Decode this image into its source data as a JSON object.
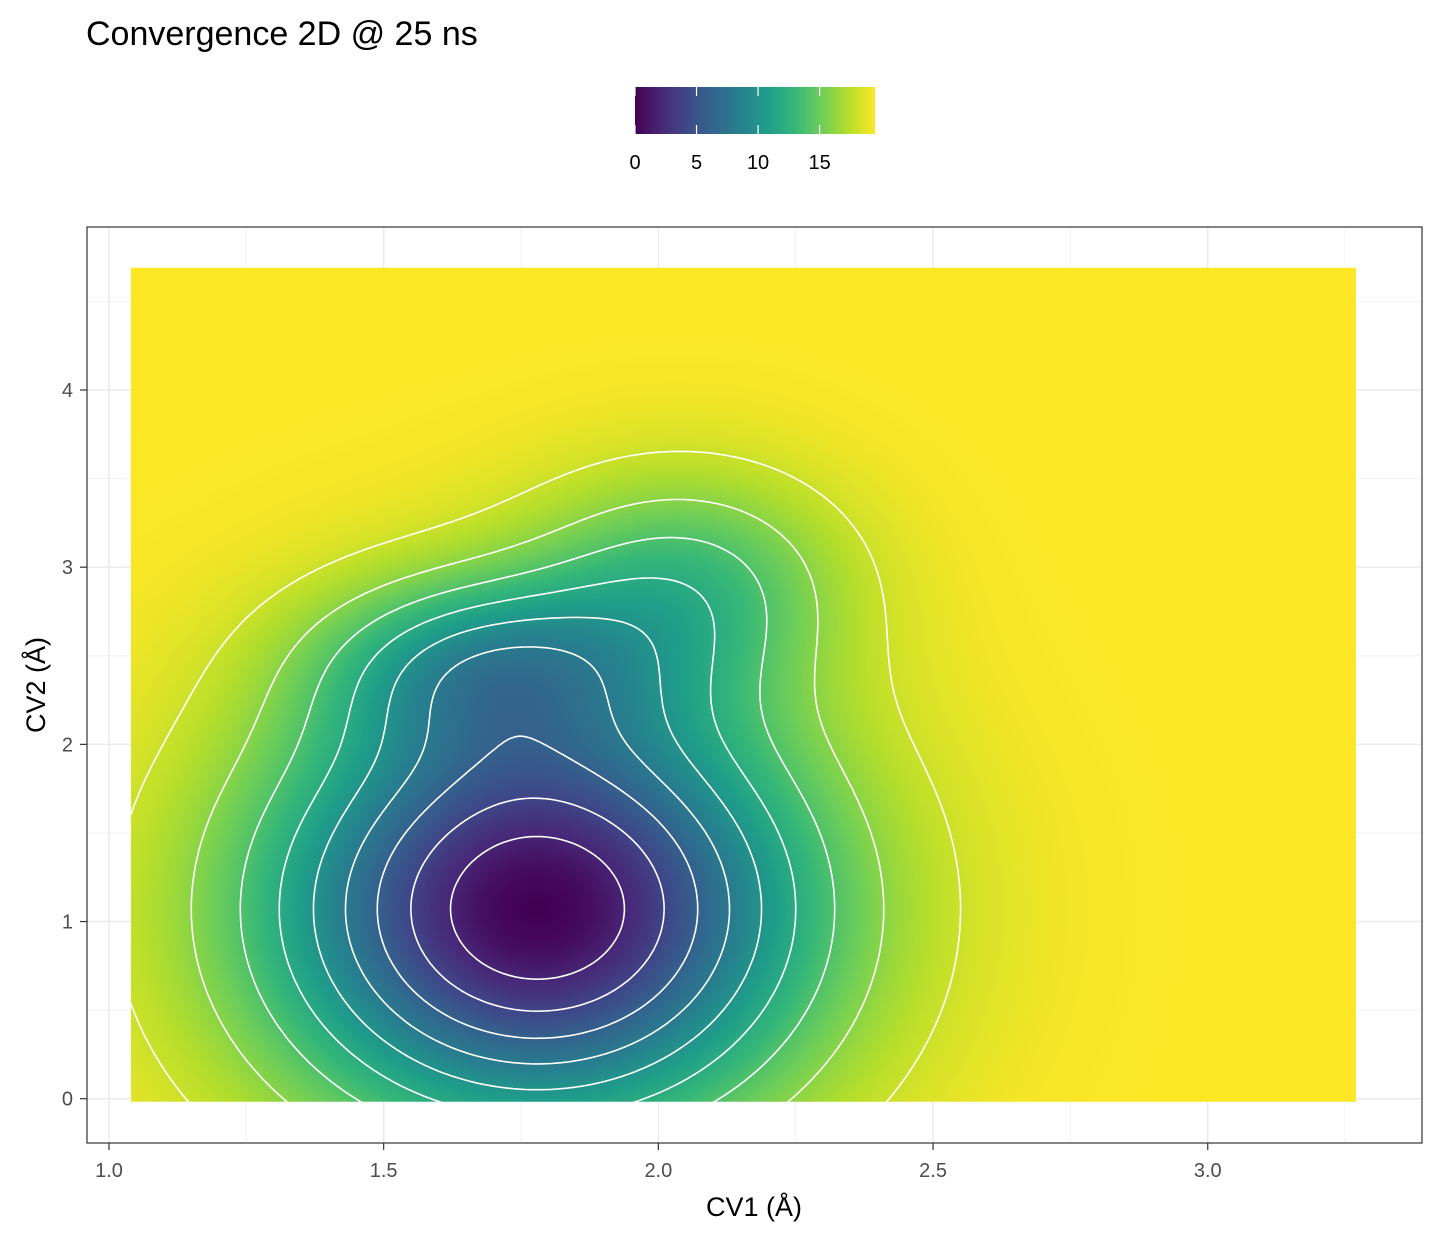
{
  "chart_data": {
    "type": "heatmap",
    "title": "Convergence 2D @ 25 ns",
    "xlabel": "CV1 (Å)",
    "ylabel": "CV2 (Å)",
    "xlim": [
      0.96,
      3.39
    ],
    "ylim": [
      -0.25,
      4.92
    ],
    "x_ticks": [
      1.0,
      1.5,
      2.0,
      2.5,
      3.0
    ],
    "x_tick_labels": [
      "1.0",
      "1.5",
      "2.0",
      "2.5",
      "3.0"
    ],
    "y_ticks": [
      0,
      1,
      2,
      3,
      4
    ],
    "y_tick_labels": [
      "0",
      "1",
      "2",
      "3",
      "4"
    ],
    "grid": true,
    "data_extent": {
      "x": [
        1.04,
        3.27
      ],
      "y": [
        -0.02,
        4.69
      ]
    },
    "fill_cap": 19.5,
    "minimum": {
      "x": 1.78,
      "y": 1.07,
      "value": 0
    },
    "basins": [
      {
        "x": 1.78,
        "y": 1.07,
        "sx": 0.34,
        "sy": 0.85,
        "depth": 19.5
      },
      {
        "x": 1.68,
        "y": 2.45,
        "sx": 0.21,
        "sy": 0.35,
        "depth": 6.5
      },
      {
        "x": 2.05,
        "y": 2.9,
        "sx": 0.2,
        "sy": 0.45,
        "depth": 5.5
      }
    ],
    "contour_levels": [
      2,
      4,
      6,
      8,
      10,
      12,
      14,
      16,
      18
    ],
    "colorbar": {
      "palette": "viridis",
      "range": [
        0,
        19.5
      ],
      "ticks": [
        0,
        5,
        10,
        15
      ],
      "tick_labels": [
        "0",
        "5",
        "10",
        "15"
      ],
      "placement": "top"
    },
    "contour_color": "#ffffff"
  }
}
